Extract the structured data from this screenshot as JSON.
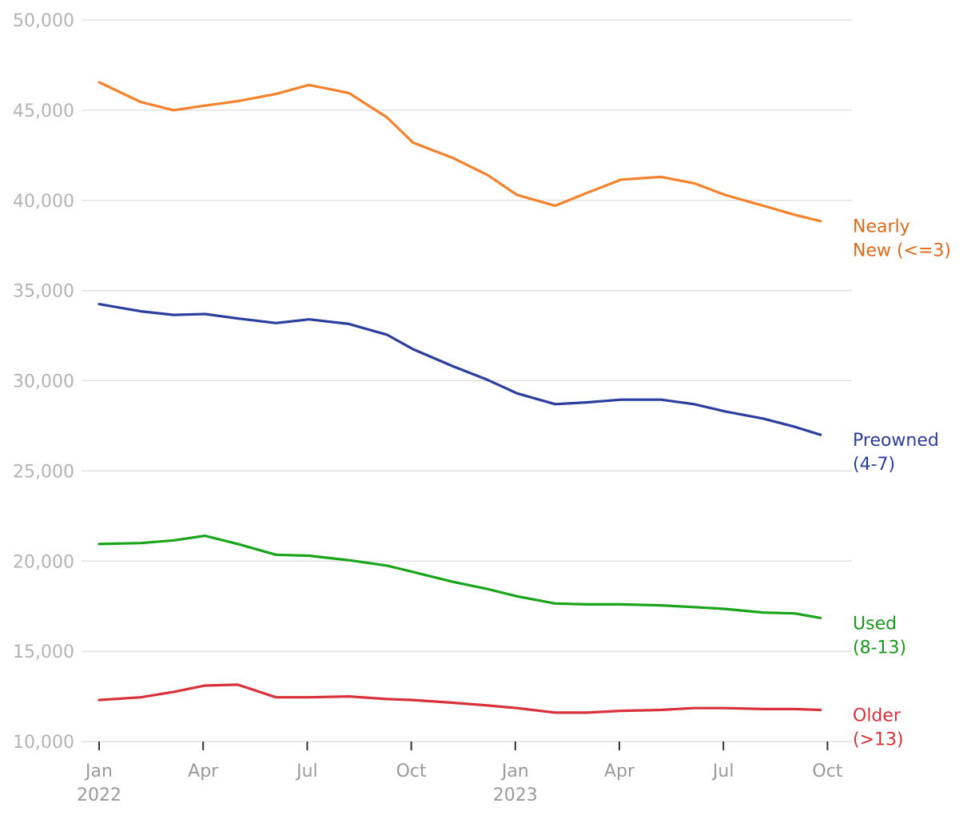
{
  "chart_data": {
    "type": "line",
    "title": "",
    "xlabel": "",
    "ylabel": "",
    "ylim": [
      10000,
      50000
    ],
    "yticks": [
      10000,
      15000,
      20000,
      25000,
      30000,
      35000,
      40000,
      45000,
      50000
    ],
    "ytick_labels": [
      "10,000",
      "15,000",
      "20,000",
      "25,000",
      "30,000",
      "35,000",
      "40,000",
      "45,000",
      "50,000"
    ],
    "grid": true,
    "x_start": "2022-01",
    "xticks": [
      {
        "index": 0,
        "month": "Jan",
        "year": "2022"
      },
      {
        "index": 3,
        "month": "Apr",
        "year": ""
      },
      {
        "index": 6,
        "month": "Jul",
        "year": ""
      },
      {
        "index": 9,
        "month": "Oct",
        "year": ""
      },
      {
        "index": 12,
        "month": "Jan",
        "year": "2023"
      },
      {
        "index": 15,
        "month": "Apr",
        "year": ""
      },
      {
        "index": 18,
        "month": "Jul",
        "year": ""
      },
      {
        "index": 21,
        "month": "Oct",
        "year": ""
      }
    ],
    "x": [
      0,
      1.2,
      2.15,
      3.05,
      4.0,
      5.1,
      6.05,
      7.2,
      8.3,
      9.05,
      10.2,
      11.2,
      12.05,
      13.15,
      14.05,
      15.05,
      16.2,
      17.15,
      18.05,
      19.15,
      20.05,
      20.8
    ],
    "series": [
      {
        "name": "Nearly New (<=3)",
        "label_lines": [
          "Nearly",
          "New (<=3)"
        ],
        "color": "#f5822a",
        "label_color": "#e06a1a",
        "values": [
          46550,
          45450,
          45000,
          45250,
          45500,
          45900,
          46400,
          45950,
          44600,
          43200,
          42350,
          41400,
          40300,
          39700,
          40400,
          41150,
          41300,
          40950,
          40300,
          39700,
          39200,
          38850
        ]
      },
      {
        "name": "Preowned (4-7)",
        "label_lines": [
          "Preowned",
          "(4-7)"
        ],
        "color": "#2b3e9e",
        "label_color": "#2b3e9e",
        "values": [
          34250,
          33850,
          33650,
          33700,
          33450,
          33200,
          33400,
          33150,
          32550,
          31750,
          30800,
          30050,
          29300,
          28700,
          28800,
          28950,
          28950,
          28700,
          28300,
          27900,
          27450,
          27000
        ]
      },
      {
        "name": "Used (8-13)",
        "label_lines": [
          "Used",
          "(8-13)"
        ],
        "color": "#1aa41a",
        "label_color": "#1a9a1a",
        "values": [
          20950,
          21000,
          21150,
          21400,
          20950,
          20350,
          20300,
          20050,
          19750,
          19400,
          18850,
          18450,
          18050,
          17650,
          17600,
          17600,
          17550,
          17450,
          17350,
          17150,
          17100,
          16850
        ]
      },
      {
        "name": "Older (>13)",
        "label_lines": [
          "Older",
          "(>13)"
        ],
        "color": "#d9313a",
        "label_color": "#d9313a",
        "values": [
          12300,
          12450,
          12750,
          13100,
          13150,
          12450,
          12450,
          12500,
          12350,
          12300,
          12150,
          12000,
          11850,
          11600,
          11600,
          11700,
          11750,
          11850,
          11850,
          11800,
          11800,
          11750
        ]
      }
    ]
  }
}
